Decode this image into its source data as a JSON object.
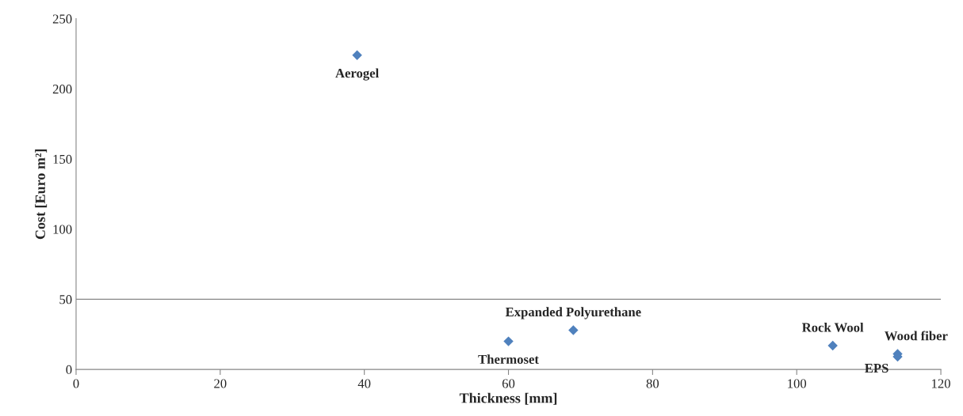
{
  "chart_data": {
    "type": "scatter",
    "xlabel": "Thickness [mm]",
    "ylabel": "Cost [Euro m²]",
    "x": [
      39,
      60,
      69,
      105,
      114,
      114
    ],
    "series": [
      {
        "color": "#4f81bd",
        "values": [
          224,
          20,
          28,
          17,
          11,
          9
        ]
      }
    ],
    "marker": "diamond",
    "xlim": [
      0,
      120
    ],
    "xticks": [
      0,
      20,
      40,
      60,
      80,
      100,
      120
    ],
    "ylim": [
      0,
      250
    ],
    "yticks": [
      0,
      50,
      100,
      150,
      200,
      250
    ],
    "grid": false,
    "ref_lines": [
      {
        "axis": "y",
        "value": 50,
        "color": "#868686"
      }
    ],
    "annotations": [
      {
        "text": "Aerogel",
        "x": 39,
        "y": 224
      },
      {
        "text": "Thermoset",
        "x": 60,
        "y": 20
      },
      {
        "text": "Expanded Polyurethane",
        "x": 69,
        "y": 28
      },
      {
        "text": "Rock Wool",
        "x": 105,
        "y": 17
      },
      {
        "text": "Wood fiber",
        "x": 114,
        "y": 11
      },
      {
        "text": "EPS",
        "x": 114,
        "y": 9
      }
    ]
  }
}
